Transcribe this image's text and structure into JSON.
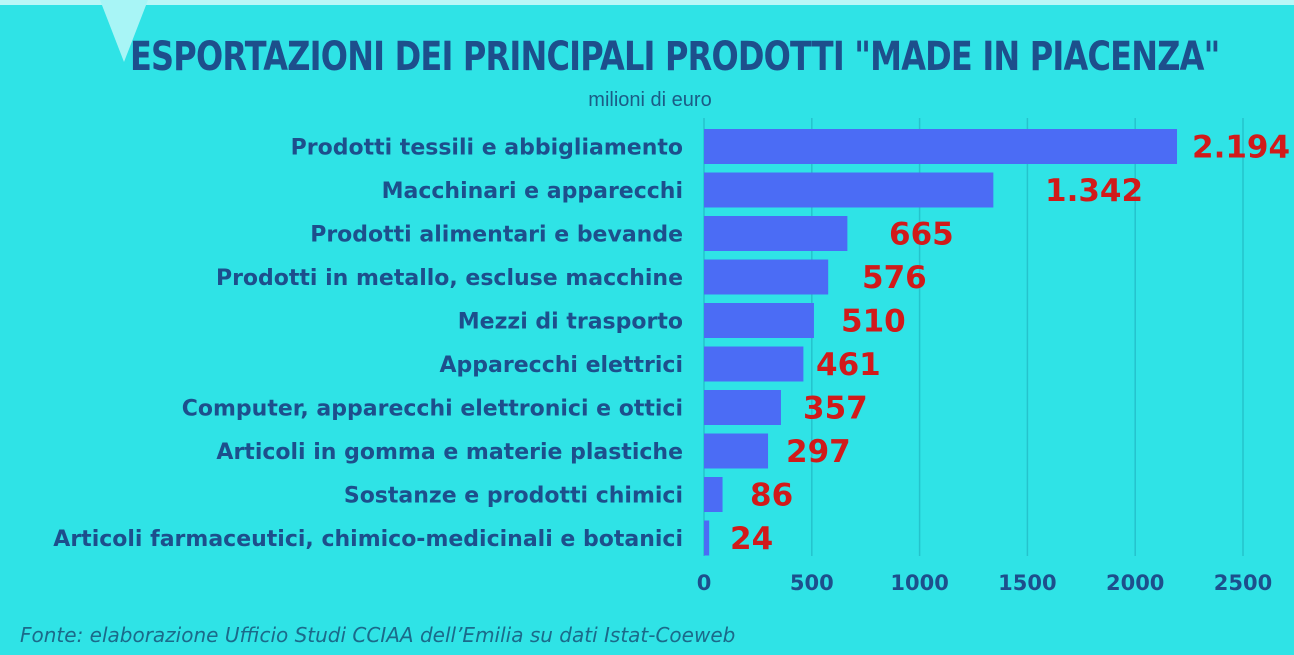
{
  "chart_data": {
    "type": "bar",
    "orientation": "horizontal",
    "title": "ESPORTAZIONI DEI PRINCIPALI PRODOTTI \"MADE IN PIACENZA\"",
    "subtitle": "milioni di euro",
    "categories": [
      "Prodotti tessili e abbigliamento",
      "Macchinari e apparecchi",
      "Prodotti alimentari e bevande",
      "Prodotti in metallo, escluse macchine",
      "Mezzi di trasporto",
      "Apparecchi elettrici",
      "Computer, apparecchi elettronici e ottici",
      "Articoli in gomma e materie plastiche",
      "Sostanze e prodotti chimici",
      "Articoli farmaceutici, chimico-medicinali e botanici"
    ],
    "values": [
      2194,
      1342,
      665,
      576,
      510,
      461,
      357,
      297,
      86,
      24
    ],
    "value_labels": [
      "2.194",
      "1.342",
      "665",
      "576",
      "510",
      "461",
      "357",
      "297",
      "86",
      "24"
    ],
    "xlim": [
      0,
      2500
    ],
    "xticks": [
      0,
      500,
      1000,
      1500,
      2000,
      2500
    ],
    "xtick_labels": [
      "0",
      "500",
      "1000",
      "1500",
      "2000",
      "2500"
    ],
    "grid": true,
    "source": "Fonte: elaborazione Ufficio Studi CCIAA dell’Emilia su dati Istat-Coeweb",
    "colors": {
      "background": "#2fe3e6",
      "bar": "#4b6cf5",
      "grid": "#25c3cc",
      "value_label": "#d11a1a",
      "category_label": "#1d4f8c",
      "tick_label": "#1d4f8c",
      "title": "#1d4f8c"
    }
  }
}
